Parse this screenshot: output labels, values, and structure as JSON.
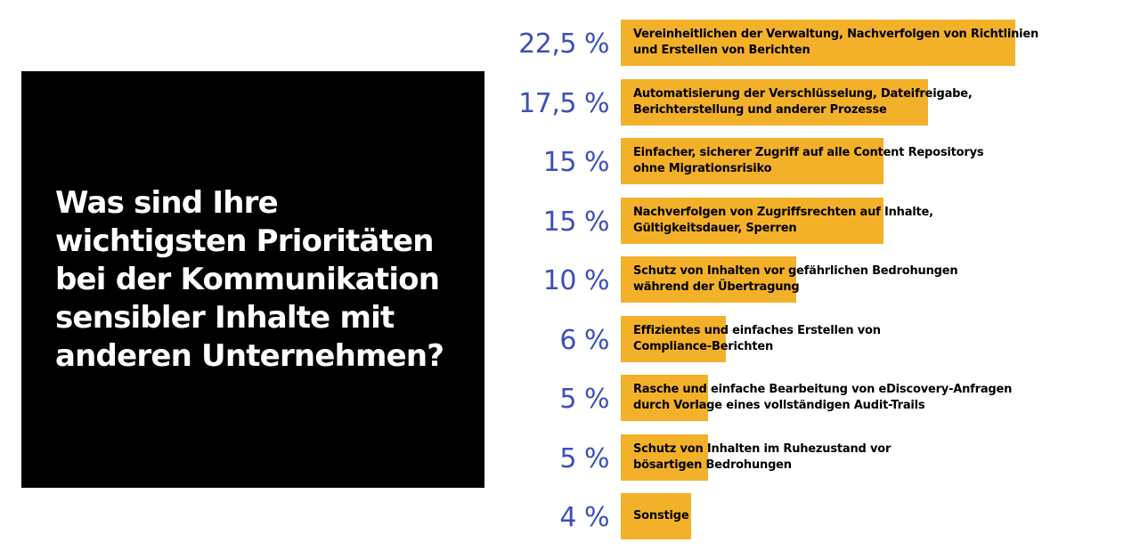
{
  "question": "Was sind Ihre wichtigsten Prioritäten bei der Kommunikation sensibler Inhalte mit anderen Unternehmen?",
  "colors": {
    "bar": "#f3b12a",
    "percent_text": "#3d4fb8",
    "question_background": "#000000",
    "question_text": "#ffffff"
  },
  "chart_data": {
    "type": "bar",
    "orientation": "horizontal",
    "title": "Was sind Ihre wichtigsten Prioritäten bei der Kommunikation sensibler Inhalte mit anderen Unternehmen?",
    "unit": "%",
    "xlim": [
      0,
      22.5
    ],
    "categories": [
      "Vereinheitlichen der Verwaltung, Nachverfolgen von Richtlinien und Erstellen von Berichten",
      "Automatisierung der Verschlüsselung, Dateifreigabe, Berichterstellung und anderer Prozesse",
      "Einfacher, sicherer Zugriff auf alle Content Repositorys ohne Migrationsrisiko",
      "Nachverfolgen von Zugriffsrechten auf Inhalte, Gültigkeitsdauer, Sperren",
      "Schutz von Inhalten vor gefährlichen Bedrohungen während der Übertragung",
      "Effizientes und einfaches Erstellen von Compliance-Berichten",
      "Rasche und einfache Bearbeitung von eDiscovery-Anfragen durch Vorlage eines vollständigen Audit-Trails",
      "Schutz von Inhalten im Ruhezustand vor bösartigen Bedrohungen",
      "Sonstige"
    ],
    "values": [
      22.5,
      17.5,
      15,
      15,
      10,
      6,
      5,
      5,
      4
    ],
    "value_labels": [
      "22,5 %",
      "17,5 %",
      "15 %",
      "15 %",
      "10 %",
      "6 %",
      "5 %",
      "5 %",
      "4 %"
    ],
    "label_lines": [
      [
        "Vereinheitlichen der Verwaltung, Nachverfolgen von Richtlinien",
        "und Erstellen von Berichten"
      ],
      [
        "Automatisierung der Verschlüsselung, Dateifreigabe,",
        "Berichterstellung und anderer Prozesse"
      ],
      [
        "Einfacher, sicherer Zugriff auf alle Content Repositorys",
        "ohne Migrationsrisiko"
      ],
      [
        "Nachverfolgen von Zugriffsrechten auf Inhalte,",
        "Gültigkeitsdauer, Sperren"
      ],
      [
        "Schutz von Inhalten vor gefährlichen Bedrohungen",
        "während der Übertragung"
      ],
      [
        "Effizientes und einfaches Erstellen von",
        "Compliance-Berichten"
      ],
      [
        "Rasche und einfache Bearbeitung von eDiscovery-Anfragen",
        "durch Vorlage eines vollständigen Audit-Trails"
      ],
      [
        "Schutz von Inhalten im Ruhezustand vor",
        "bösartigen Bedrohungen"
      ],
      [
        "Sonstige"
      ]
    ]
  }
}
